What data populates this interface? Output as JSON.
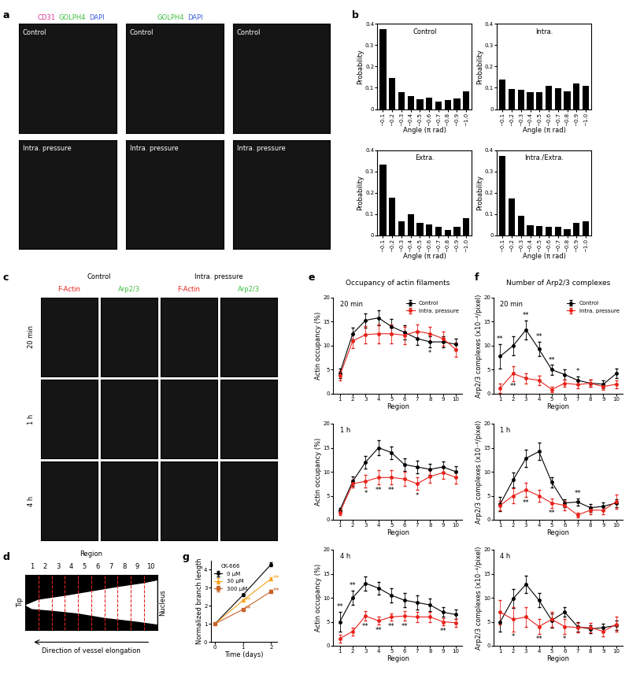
{
  "panel_labels": [
    "a",
    "b",
    "c",
    "d",
    "e",
    "f",
    "g"
  ],
  "panel_a": {
    "left_channels": [
      {
        "text": "CD31",
        "color": "#e0379b"
      },
      {
        "text": "GOLPH4",
        "color": "#3fbf3f"
      },
      {
        "text": "DAPI",
        "color": "#3f5fdf"
      }
    ],
    "right_channels": [
      {
        "text": "GOLPH4",
        "color": "#3fbf3f"
      },
      {
        "text": "DAPI",
        "color": "#3f5fdf"
      }
    ],
    "top_row_label": "Control",
    "bottom_row_label": "Intra. pressure"
  },
  "panel_c": {
    "groups": [
      "Control",
      "Intra. pressure"
    ],
    "channels": [
      {
        "text": "F-Actin",
        "color": "#e8221b"
      },
      {
        "text": "Arp2/3",
        "color": "#3fbf3f"
      }
    ],
    "rows": [
      "20 min",
      "1 h",
      "4 h"
    ]
  },
  "panel_d": {
    "title": "Region",
    "regions": [
      1,
      2,
      3,
      4,
      5,
      6,
      7,
      8,
      9,
      10
    ],
    "left": "Tip",
    "right": "Nucleus",
    "arrow_label": "Direction of vessel elongation"
  },
  "chart_data": [
    {
      "type": "bar",
      "title": "Control",
      "categories": [
        "~0.1",
        "~0.2",
        "~0.3",
        "~0.4",
        "~0.5",
        "~0.6",
        "~0.7",
        "~0.8",
        "~0.9",
        "~1.0"
      ],
      "values": [
        0.375,
        0.148,
        0.08,
        0.063,
        0.048,
        0.055,
        0.035,
        0.042,
        0.05,
        0.083
      ],
      "color": "#000000",
      "x_label": "Angle (π rad)",
      "y_label": "Probability",
      "ylim": [
        0,
        0.4
      ],
      "yticks": [
        0,
        0.1,
        0.2,
        0.3,
        0.4
      ]
    },
    {
      "type": "bar",
      "title": "Intra.",
      "categories": [
        "~0.1",
        "~0.2",
        "~0.3",
        "~0.4",
        "~0.5",
        "~0.6",
        "~0.7",
        "~0.8",
        "~0.9",
        "~1.0"
      ],
      "values": [
        0.137,
        0.093,
        0.09,
        0.08,
        0.078,
        0.11,
        0.097,
        0.083,
        0.12,
        0.11
      ],
      "color": "#000000",
      "x_label": "Angle (π rad)",
      "y_label": "Probability",
      "ylim": [
        0,
        0.4
      ],
      "yticks": [
        0,
        0.1,
        0.2,
        0.3,
        0.4
      ]
    },
    {
      "type": "bar",
      "title": "Extra.",
      "categories": [
        "~0.1",
        "~0.2",
        "~0.3",
        "~0.4",
        "~0.5",
        "~0.6",
        "~0.7",
        "~0.8",
        "~0.9",
        "~1.0"
      ],
      "values": [
        0.333,
        0.178,
        0.066,
        0.1,
        0.06,
        0.05,
        0.038,
        0.025,
        0.04,
        0.08
      ],
      "color": "#000000",
      "x_label": "Angle (π rad)",
      "y_label": "Probability",
      "ylim": [
        0,
        0.4
      ],
      "yticks": [
        0,
        0.1,
        0.2,
        0.3,
        0.4
      ]
    },
    {
      "type": "bar",
      "title": "Intra./Extra.",
      "categories": [
        "~0.1",
        "~0.2",
        "~0.3",
        "~0.4",
        "~0.5",
        "~0.6",
        "~0.7",
        "~0.8",
        "~0.9",
        "~1.0"
      ],
      "values": [
        0.372,
        0.172,
        0.093,
        0.048,
        0.045,
        0.04,
        0.04,
        0.03,
        0.058,
        0.065
      ],
      "color": "#000000",
      "x_label": "Angle (π rad)",
      "y_label": "Probability",
      "ylim": [
        0,
        0.4
      ],
      "yticks": [
        0,
        0.1,
        0.2,
        0.3,
        0.4
      ]
    },
    {
      "type": "line",
      "title": "Occupancy of actin filaments",
      "subtitle": "20 min",
      "legend": "upper right",
      "x": [
        1,
        2,
        3,
        4,
        5,
        6,
        7,
        8,
        9,
        10
      ],
      "xlim": [
        0.5,
        10.5
      ],
      "xticks": [
        1,
        2,
        3,
        4,
        5,
        6,
        7,
        8,
        9,
        10
      ],
      "ylim": [
        0,
        20
      ],
      "yticks": [
        0,
        5,
        10,
        15,
        20
      ],
      "x_label": "Region",
      "y_label": "Actin occupancy (%)",
      "series": [
        {
          "name": "Control",
          "color": "#000000",
          "marker": "circle",
          "line_style": "solid",
          "values": [
            4.3,
            12.5,
            15.3,
            15.8,
            14.0,
            12.8,
            11.5,
            10.8,
            10.8,
            10.3
          ],
          "errors": [
            1.0,
            1.2,
            1.5,
            1.5,
            1.5,
            1.5,
            1.3,
            1.2,
            1.2,
            1.2
          ]
        },
        {
          "name": "Intra. pressure",
          "color": "#e8221b",
          "marker": "circle",
          "line_style": "solid",
          "values": [
            3.8,
            11.0,
            12.3,
            12.5,
            12.5,
            12.2,
            13.0,
            12.5,
            11.5,
            9.2
          ],
          "errors": [
            1.0,
            1.5,
            1.8,
            2.0,
            2.0,
            1.8,
            1.5,
            1.5,
            1.5,
            1.5
          ]
        }
      ],
      "annotations": [
        {
          "x": 8,
          "text": "*"
        }
      ]
    },
    {
      "type": "line",
      "subtitle": "1 h",
      "x": [
        1,
        2,
        3,
        4,
        5,
        6,
        7,
        8,
        9,
        10
      ],
      "xlim": [
        0.5,
        10.5
      ],
      "xticks": [
        1,
        2,
        3,
        4,
        5,
        6,
        7,
        8,
        9,
        10
      ],
      "ylim": [
        0,
        20
      ],
      "yticks": [
        0,
        5,
        10,
        15,
        20
      ],
      "x_label": "Region",
      "y_label": "Actin occupancy (%)",
      "series": [
        {
          "name": "Control",
          "color": "#000000",
          "marker": "circle",
          "line_style": "solid",
          "values": [
            2.0,
            8.0,
            12.0,
            15.0,
            14.0,
            11.5,
            11.0,
            10.5,
            11.0,
            10.0
          ],
          "errors": [
            0.5,
            1.0,
            1.3,
            1.5,
            1.3,
            1.3,
            1.3,
            1.2,
            1.2,
            1.2
          ]
        },
        {
          "name": "Intra. pressure",
          "color": "#e8221b",
          "marker": "circle",
          "line_style": "solid",
          "values": [
            1.5,
            7.5,
            8.0,
            8.8,
            8.8,
            8.5,
            7.5,
            9.0,
            9.8,
            8.8
          ],
          "errors": [
            0.5,
            0.8,
            1.3,
            1.5,
            1.5,
            1.5,
            1.3,
            1.3,
            1.3,
            1.3
          ]
        }
      ],
      "annotations": [
        {
          "x": 3,
          "text": "*"
        },
        {
          "x": 4,
          "text": "**"
        },
        {
          "x": 5,
          "text": "**"
        },
        {
          "x": 7,
          "text": "*"
        }
      ]
    },
    {
      "type": "line",
      "subtitle": "4 h",
      "x": [
        1,
        2,
        3,
        4,
        5,
        6,
        7,
        8,
        9,
        10
      ],
      "xlim": [
        0.5,
        10.5
      ],
      "xticks": [
        1,
        2,
        3,
        4,
        5,
        6,
        7,
        8,
        9,
        10
      ],
      "ylim": [
        0,
        20
      ],
      "yticks": [
        0,
        5,
        10,
        15,
        20
      ],
      "x_label": "Region",
      "y_label": "Actin occupancy (%)",
      "series": [
        {
          "name": "Control",
          "color": "#000000",
          "marker": "circle",
          "line_style": "solid",
          "values": [
            5.0,
            10.0,
            13.0,
            12.0,
            10.5,
            9.5,
            9.0,
            8.5,
            7.0,
            6.5
          ],
          "errors": [
            2.0,
            1.5,
            1.5,
            1.3,
            1.5,
            1.5,
            1.5,
            1.3,
            1.0,
            1.0
          ]
        },
        {
          "name": "Intra. pressure",
          "color": "#e8221b",
          "marker": "circle",
          "line_style": "solid",
          "values": [
            1.5,
            3.0,
            6.2,
            5.2,
            6.0,
            6.2,
            6.0,
            6.0,
            5.0,
            4.8
          ],
          "errors": [
            0.8,
            0.8,
            1.0,
            0.8,
            0.8,
            1.0,
            1.0,
            1.0,
            0.8,
            0.8
          ]
        }
      ],
      "annotations": [
        {
          "x": 1,
          "text": "**"
        },
        {
          "x": 2,
          "text": "**"
        },
        {
          "x": 3,
          "text": "**"
        },
        {
          "x": 4,
          "text": "**"
        },
        {
          "x": 5,
          "text": "**"
        },
        {
          "x": 6,
          "text": "**"
        },
        {
          "x": 9,
          "text": "**"
        }
      ]
    },
    {
      "type": "line",
      "title": "Number of Arp2/3 complexes",
      "subtitle": "20 min",
      "legend": "upper right",
      "x": [
        1,
        2,
        3,
        4,
        5,
        6,
        7,
        8,
        9,
        10
      ],
      "xlim": [
        0.5,
        10.5
      ],
      "xticks": [
        1,
        2,
        3,
        4,
        5,
        6,
        7,
        8,
        9,
        10
      ],
      "ylim": [
        0,
        20
      ],
      "yticks": [
        0,
        5,
        10,
        15,
        20
      ],
      "x_label": "Region",
      "y_label": "Arp2/3 complexes (x10⁻⁴/pixel)",
      "series": [
        {
          "name": "Control",
          "color": "#000000",
          "marker": "circle",
          "line_style": "solid",
          "values": [
            7.8,
            10.0,
            13.3,
            9.3,
            5.0,
            4.0,
            2.8,
            2.2,
            2.0,
            4.2
          ],
          "errors": [
            2.5,
            2.0,
            2.0,
            1.5,
            1.0,
            1.0,
            0.8,
            0.8,
            0.8,
            1.0
          ]
        },
        {
          "name": "Intra. pressure",
          "color": "#e8221b",
          "marker": "circle",
          "line_style": "solid",
          "values": [
            1.2,
            4.2,
            3.2,
            2.8,
            0.9,
            2.2,
            1.9,
            2.2,
            1.5,
            2.0
          ],
          "errors": [
            1.0,
            1.5,
            1.0,
            1.0,
            0.5,
            0.8,
            0.8,
            0.8,
            0.6,
            0.8
          ]
        }
      ],
      "annotations": [
        {
          "x": 1,
          "text": "**"
        },
        {
          "x": 2,
          "text": "**"
        },
        {
          "x": 3,
          "text": "**"
        },
        {
          "x": 4,
          "text": "**"
        },
        {
          "x": 5,
          "text": "**"
        },
        {
          "x": 7,
          "text": "*"
        }
      ]
    },
    {
      "type": "line",
      "subtitle": "1 h",
      "x": [
        1,
        2,
        3,
        4,
        5,
        6,
        7,
        8,
        9,
        10
      ],
      "xlim": [
        0.5,
        10.5
      ],
      "xticks": [
        1,
        2,
        3,
        4,
        5,
        6,
        7,
        8,
        9,
        10
      ],
      "ylim": [
        0,
        20
      ],
      "yticks": [
        0,
        5,
        10,
        15,
        20
      ],
      "x_label": "Region",
      "y_label": "Arp2/3 complexes (x10⁻⁴/pixel)",
      "series": [
        {
          "name": "Control",
          "color": "#000000",
          "marker": "circle",
          "line_style": "solid",
          "values": [
            3.3,
            8.3,
            12.8,
            14.2,
            7.8,
            3.5,
            3.7,
            2.5,
            2.8,
            3.5
          ],
          "errors": [
            1.5,
            1.5,
            1.8,
            1.8,
            1.0,
            0.8,
            0.8,
            0.8,
            0.8,
            0.8
          ]
        },
        {
          "name": "Intra. pressure",
          "color": "#e8221b",
          "marker": "circle",
          "line_style": "solid",
          "values": [
            3.0,
            5.0,
            6.2,
            5.0,
            3.5,
            3.0,
            1.0,
            2.0,
            2.0,
            3.8
          ],
          "errors": [
            1.0,
            1.5,
            1.5,
            1.3,
            1.0,
            1.0,
            0.5,
            0.8,
            0.8,
            1.5
          ]
        }
      ],
      "annotations": [
        {
          "x": 3,
          "text": "**"
        },
        {
          "x": 5,
          "text": "**"
        },
        {
          "x": 7,
          "text": "**"
        }
      ]
    },
    {
      "type": "line",
      "subtitle": "4 h",
      "x": [
        1,
        2,
        3,
        4,
        5,
        6,
        7,
        8,
        9,
        10
      ],
      "xlim": [
        0.5,
        10.5
      ],
      "xticks": [
        1,
        2,
        3,
        4,
        5,
        6,
        7,
        8,
        9,
        10
      ],
      "ylim": [
        0,
        20
      ],
      "yticks": [
        0,
        5,
        10,
        15,
        20
      ],
      "x_label": "Region",
      "y_label": "Arp2/3 complexes (x10⁻⁴/pixel)",
      "series": [
        {
          "name": "Control",
          "color": "#000000",
          "marker": "circle",
          "line_style": "solid",
          "values": [
            5.0,
            9.8,
            12.8,
            9.5,
            5.3,
            7.0,
            4.0,
            3.5,
            3.8,
            4.2
          ],
          "errors": [
            2.0,
            2.0,
            1.8,
            1.5,
            1.5,
            1.0,
            1.0,
            0.8,
            0.8,
            1.0
          ]
        },
        {
          "name": "Intra. pressure",
          "color": "#e8221b",
          "marker": "circle",
          "line_style": "solid",
          "values": [
            7.0,
            5.5,
            6.0,
            4.0,
            5.5,
            4.0,
            3.8,
            3.8,
            3.0,
            4.5
          ],
          "errors": [
            2.5,
            2.5,
            2.0,
            1.5,
            1.5,
            1.5,
            1.0,
            1.0,
            1.0,
            1.5
          ]
        }
      ],
      "annotations": [
        {
          "x": 2,
          "text": "*"
        },
        {
          "x": 4,
          "text": "**"
        },
        {
          "x": 6,
          "text": "*"
        }
      ]
    },
    {
      "type": "line",
      "legend": "upper left",
      "legend_title": "CK-666",
      "x": [
        0,
        1,
        2
      ],
      "xlim": [
        -0.15,
        2.2
      ],
      "xticks": [
        0,
        1,
        2
      ],
      "ylim": [
        0,
        4.5
      ],
      "yticks": [
        0,
        1,
        2,
        3,
        4
      ],
      "x_label": "Time (days)",
      "y_label": "Normalized branch length",
      "series": [
        {
          "name": "0 μM",
          "color": "#000000",
          "marker": "circle",
          "line_style": "solid",
          "values": [
            1.0,
            2.6,
            4.3
          ],
          "errors": [
            0.0,
            0.05,
            0.1
          ]
        },
        {
          "name": "30 μM",
          "color": "#f5a31b",
          "marker": "triangle",
          "line_style": "solid",
          "values": [
            1.0,
            2.3,
            3.5
          ],
          "errors": [
            0.0,
            0.05,
            0.1
          ]
        },
        {
          "name": "300 μM",
          "color": "#c8642a",
          "marker": "square",
          "line_style": "solid",
          "values": [
            1.0,
            1.8,
            2.8
          ],
          "errors": [
            0.0,
            0.05,
            0.1
          ]
        }
      ],
      "annotations": [
        {
          "x": 1,
          "series": "30 μM",
          "text": "**"
        },
        {
          "x": 1,
          "series": "300 μM",
          "text": "**"
        },
        {
          "x": 2,
          "series": "30 μM",
          "text": "**"
        },
        {
          "x": 2,
          "series": "300 μM",
          "text": "**"
        }
      ]
    }
  ]
}
